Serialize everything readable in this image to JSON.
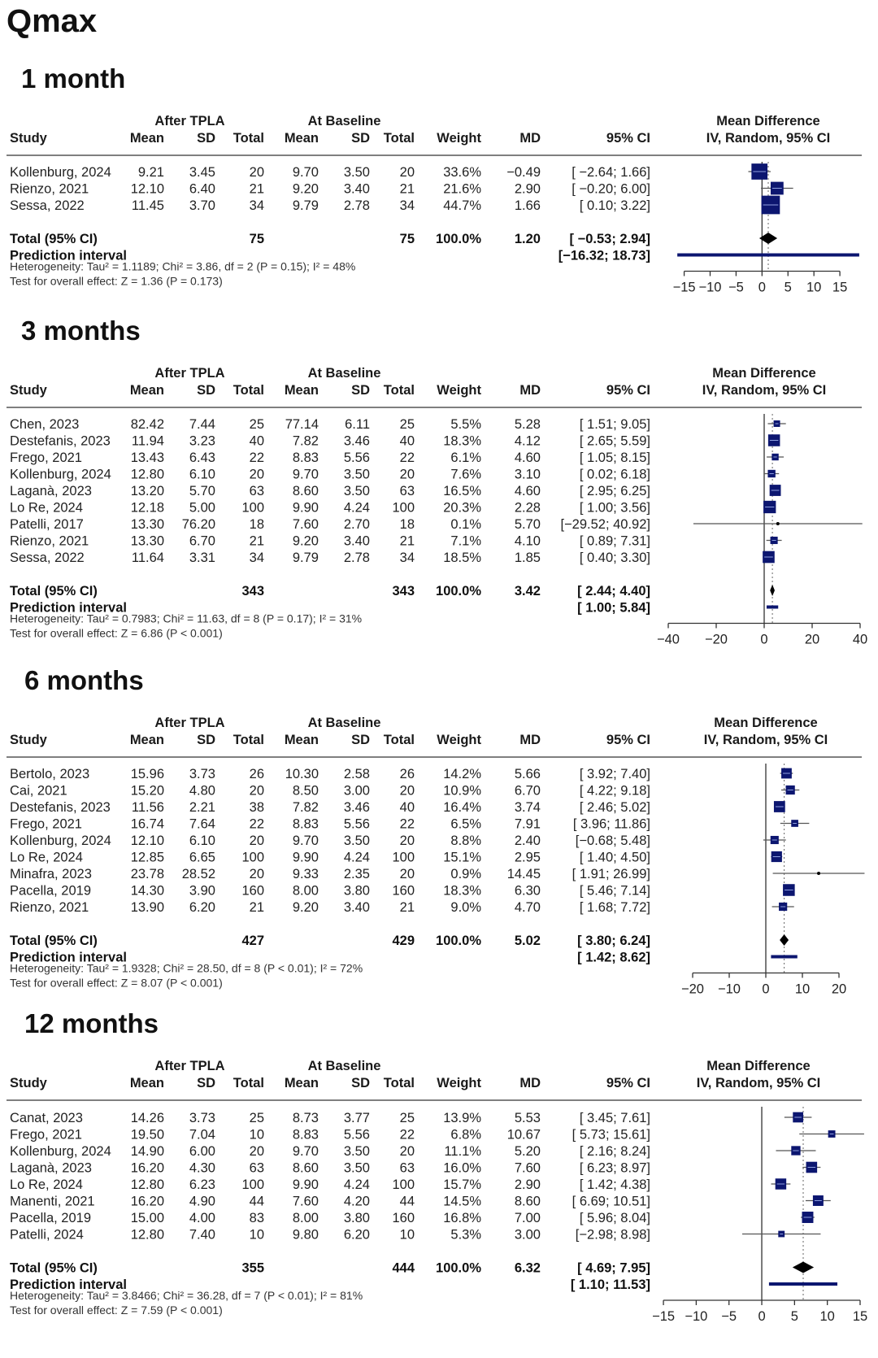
{
  "title": "Qmax",
  "headers": {
    "group1": "After TPLA",
    "group2": "At Baseline",
    "study": "Study",
    "mean": "Mean",
    "sd": "SD",
    "total": "Total",
    "weight": "Weight",
    "md": "MD",
    "ci": "95% CI",
    "effect1": "Mean Difference",
    "effect2": "IV, Random, 95% CI"
  },
  "colors": {
    "box": "#0c1670",
    "marker": "#000000",
    "pi": "#0c1670"
  },
  "chart_data": [
    {
      "type": "forest",
      "panel_title": "1 month",
      "xlim": [
        -16.5,
        18.9
      ],
      "xticks": [
        -15,
        -10,
        -5,
        0,
        5,
        10,
        15
      ],
      "studies": [
        {
          "study": "Kollenburg, 2024",
          "mean1": "9.21",
          "sd1": "3.45",
          "n1": "20",
          "mean2": "9.70",
          "sd2": "3.50",
          "n2": "20",
          "weight": "33.6%",
          "md": "−0.49",
          "ci": "[ −2.64;  1.66]",
          "md_v": -0.49,
          "lo": -2.64,
          "hi": 1.66,
          "w": 33.6
        },
        {
          "study": "Rienzo, 2021",
          "mean1": "12.10",
          "sd1": "6.40",
          "n1": "21",
          "mean2": "9.20",
          "sd2": "3.40",
          "n2": "21",
          "weight": "21.6%",
          "md": "2.90",
          "ci": "[ −0.20;  6.00]",
          "md_v": 2.9,
          "lo": -0.2,
          "hi": 6.0,
          "w": 21.6
        },
        {
          "study": "Sessa, 2022",
          "mean1": "11.45",
          "sd1": "3.70",
          "n1": "34",
          "mean2": "9.79",
          "sd2": "2.78",
          "n2": "34",
          "weight": "44.7%",
          "md": "1.66",
          "ci": "[  0.10;  3.22]",
          "md_v": 1.66,
          "lo": 0.1,
          "hi": 3.22,
          "w": 44.7
        }
      ],
      "total": {
        "label": "Total (95% CI)",
        "n1": "75",
        "n2": "75",
        "weight": "100.0%",
        "md": "1.20",
        "ci": "[ −0.53;  2.94]",
        "md_v": 1.2,
        "lo": -0.53,
        "hi": 2.94
      },
      "prediction": {
        "label": "Prediction interval",
        "ci": "[−16.32; 18.73]",
        "lo": -16.32,
        "hi": 18.73
      },
      "heterogeneity": "Heterogeneity: Tau² = 1.1189; Chi² = 3.86, df = 2 (P = 0.15); I² = 48%",
      "overall": "Test for overall effect: Z = 1.36 (P = 0.173)"
    },
    {
      "type": "forest",
      "panel_title": "3 months",
      "xlim": [
        -40,
        40
      ],
      "xticks": [
        -40,
        -20,
        0,
        20,
        40
      ],
      "studies": [
        {
          "study": "Chen, 2023",
          "mean1": "82.42",
          "sd1": "7.44",
          "n1": "25",
          "mean2": "77.14",
          "sd2": "6.11",
          "n2": "25",
          "weight": "5.5%",
          "md": "5.28",
          "ci": "[  1.51;  9.05]",
          "md_v": 5.28,
          "lo": 1.51,
          "hi": 9.05,
          "w": 5.5
        },
        {
          "study": "Destefanis, 2023",
          "mean1": "11.94",
          "sd1": "3.23",
          "n1": "40",
          "mean2": "7.82",
          "sd2": "3.46",
          "n2": "40",
          "weight": "18.3%",
          "md": "4.12",
          "ci": "[  2.65;  5.59]",
          "md_v": 4.12,
          "lo": 2.65,
          "hi": 5.59,
          "w": 18.3
        },
        {
          "study": "Frego, 2021",
          "mean1": "13.43",
          "sd1": "6.43",
          "n1": "22",
          "mean2": "8.83",
          "sd2": "5.56",
          "n2": "22",
          "weight": "6.1%",
          "md": "4.60",
          "ci": "[  1.05;  8.15]",
          "md_v": 4.6,
          "lo": 1.05,
          "hi": 8.15,
          "w": 6.1
        },
        {
          "study": "Kollenburg, 2024",
          "mean1": "12.80",
          "sd1": "6.10",
          "n1": "20",
          "mean2": "9.70",
          "sd2": "3.50",
          "n2": "20",
          "weight": "7.6%",
          "md": "3.10",
          "ci": "[  0.02;  6.18]",
          "md_v": 3.1,
          "lo": 0.02,
          "hi": 6.18,
          "w": 7.6
        },
        {
          "study": "Laganà, 2023",
          "mean1": "13.20",
          "sd1": "5.70",
          "n1": "63",
          "mean2": "8.60",
          "sd2": "3.50",
          "n2": "63",
          "weight": "16.5%",
          "md": "4.60",
          "ci": "[  2.95;  6.25]",
          "md_v": 4.6,
          "lo": 2.95,
          "hi": 6.25,
          "w": 16.5
        },
        {
          "study": "Lo Re, 2024",
          "mean1": "12.18",
          "sd1": "5.00",
          "n1": "100",
          "mean2": "9.90",
          "sd2": "4.24",
          "n2": "100",
          "weight": "20.3%",
          "md": "2.28",
          "ci": "[  1.00;  3.56]",
          "md_v": 2.28,
          "lo": 1.0,
          "hi": 3.56,
          "w": 20.3
        },
        {
          "study": "Patelli, 2017",
          "mean1": "13.30",
          "sd1": "76.20",
          "n1": "18",
          "mean2": "7.60",
          "sd2": "2.70",
          "n2": "18",
          "weight": "0.1%",
          "md": "5.70",
          "ci": "[−29.52; 40.92]",
          "md_v": 5.7,
          "lo": -29.52,
          "hi": 40.92,
          "w": 0.1
        },
        {
          "study": "Rienzo, 2021",
          "mean1": "13.30",
          "sd1": "6.70",
          "n1": "21",
          "mean2": "9.20",
          "sd2": "3.40",
          "n2": "21",
          "weight": "7.1%",
          "md": "4.10",
          "ci": "[  0.89;  7.31]",
          "md_v": 4.1,
          "lo": 0.89,
          "hi": 7.31,
          "w": 7.1
        },
        {
          "study": "Sessa, 2022",
          "mean1": "11.64",
          "sd1": "3.31",
          "n1": "34",
          "mean2": "9.79",
          "sd2": "2.78",
          "n2": "34",
          "weight": "18.5%",
          "md": "1.85",
          "ci": "[  0.40;  3.30]",
          "md_v": 1.85,
          "lo": 0.4,
          "hi": 3.3,
          "w": 18.5
        }
      ],
      "total": {
        "label": "Total (95% CI)",
        "n1": "343",
        "n2": "343",
        "weight": "100.0%",
        "md": "3.42",
        "ci": "[  2.44;  4.40]",
        "md_v": 3.42,
        "lo": 2.44,
        "hi": 4.4
      },
      "prediction": {
        "label": "Prediction interval",
        "ci": "[  1.00;  5.84]",
        "lo": 1.0,
        "hi": 5.84
      },
      "heterogeneity": "Heterogeneity: Tau² = 0.7983; Chi² = 11.63, df = 8 (P = 0.17); I² = 31%",
      "overall": "Test for overall effect: Z = 6.86 (P < 0.001)"
    },
    {
      "type": "forest",
      "panel_title": "6 months",
      "xlim": [
        -20,
        20
      ],
      "xticks": [
        -20,
        -10,
        0,
        10,
        20
      ],
      "studies": [
        {
          "study": "Bertolo, 2023",
          "mean1": "15.96",
          "sd1": "3.73",
          "n1": "26",
          "mean2": "10.30",
          "sd2": "2.58",
          "n2": "26",
          "weight": "14.2%",
          "md": "5.66",
          "ci": "[ 3.92;  7.40]",
          "md_v": 5.66,
          "lo": 3.92,
          "hi": 7.4,
          "w": 14.2
        },
        {
          "study": "Cai, 2021",
          "mean1": "15.20",
          "sd1": "4.80",
          "n1": "20",
          "mean2": "8.50",
          "sd2": "3.00",
          "n2": "20",
          "weight": "10.9%",
          "md": "6.70",
          "ci": "[ 4.22;  9.18]",
          "md_v": 6.7,
          "lo": 4.22,
          "hi": 9.18,
          "w": 10.9
        },
        {
          "study": "Destefanis, 2023",
          "mean1": "11.56",
          "sd1": "2.21",
          "n1": "38",
          "mean2": "7.82",
          "sd2": "3.46",
          "n2": "40",
          "weight": "16.4%",
          "md": "3.74",
          "ci": "[ 2.46;  5.02]",
          "md_v": 3.74,
          "lo": 2.46,
          "hi": 5.02,
          "w": 16.4
        },
        {
          "study": "Frego, 2021",
          "mean1": "16.74",
          "sd1": "7.64",
          "n1": "22",
          "mean2": "8.83",
          "sd2": "5.56",
          "n2": "22",
          "weight": "6.5%",
          "md": "7.91",
          "ci": "[ 3.96; 11.86]",
          "md_v": 7.91,
          "lo": 3.96,
          "hi": 11.86,
          "w": 6.5
        },
        {
          "study": "Kollenburg, 2024",
          "mean1": "12.10",
          "sd1": "6.10",
          "n1": "20",
          "mean2": "9.70",
          "sd2": "3.50",
          "n2": "20",
          "weight": "8.8%",
          "md": "2.40",
          "ci": "[−0.68;  5.48]",
          "md_v": 2.4,
          "lo": -0.68,
          "hi": 5.48,
          "w": 8.8
        },
        {
          "study": "Lo Re, 2024",
          "mean1": "12.85",
          "sd1": "6.65",
          "n1": "100",
          "mean2": "9.90",
          "sd2": "4.24",
          "n2": "100",
          "weight": "15.1%",
          "md": "2.95",
          "ci": "[ 1.40;  4.50]",
          "md_v": 2.95,
          "lo": 1.4,
          "hi": 4.5,
          "w": 15.1
        },
        {
          "study": "Minafra, 2023",
          "mean1": "23.78",
          "sd1": "28.52",
          "n1": "20",
          "mean2": "9.33",
          "sd2": "2.35",
          "n2": "20",
          "weight": "0.9%",
          "md": "14.45",
          "ci": "[ 1.91; 26.99]",
          "md_v": 14.45,
          "lo": 1.91,
          "hi": 26.99,
          "w": 0.9
        },
        {
          "study": "Pacella, 2019",
          "mean1": "14.30",
          "sd1": "3.90",
          "n1": "160",
          "mean2": "8.00",
          "sd2": "3.80",
          "n2": "160",
          "weight": "18.3%",
          "md": "6.30",
          "ci": "[ 5.46;  7.14]",
          "md_v": 6.3,
          "lo": 5.46,
          "hi": 7.14,
          "w": 18.3
        },
        {
          "study": "Rienzo, 2021",
          "mean1": "13.90",
          "sd1": "6.20",
          "n1": "21",
          "mean2": "9.20",
          "sd2": "3.40",
          "n2": "21",
          "weight": "9.0%",
          "md": "4.70",
          "ci": "[ 1.68;  7.72]",
          "md_v": 4.7,
          "lo": 1.68,
          "hi": 7.72,
          "w": 9.0
        }
      ],
      "total": {
        "label": "Total (95% CI)",
        "n1": "427",
        "n2": "429",
        "weight": "100.0%",
        "md": "5.02",
        "ci": "[ 3.80;  6.24]",
        "md_v": 5.02,
        "lo": 3.8,
        "hi": 6.24
      },
      "prediction": {
        "label": "Prediction interval",
        "ci": "[ 1.42;  8.62]",
        "lo": 1.42,
        "hi": 8.62
      },
      "heterogeneity": "Heterogeneity: Tau² = 1.9328; Chi² = 28.50, df = 8 (P < 0.01); I² = 72%",
      "overall": "Test for overall effect: Z = 8.07 (P < 0.001)"
    },
    {
      "type": "forest",
      "panel_title": "12 months",
      "xlim": [
        -16,
        15
      ],
      "xticks": [
        -15,
        -10,
        -5,
        0,
        5,
        10,
        15
      ],
      "studies": [
        {
          "study": "Canat, 2023",
          "mean1": "14.26",
          "sd1": "3.73",
          "n1": "25",
          "mean2": "8.73",
          "sd2": "3.77",
          "n2": "25",
          "weight": "13.9%",
          "md": "5.53",
          "ci": "[ 3.45;  7.61]",
          "md_v": 5.53,
          "lo": 3.45,
          "hi": 7.61,
          "w": 13.9
        },
        {
          "study": "Frego, 2021",
          "mean1": "19.50",
          "sd1": "7.04",
          "n1": "10",
          "mean2": "8.83",
          "sd2": "5.56",
          "n2": "22",
          "weight": "6.8%",
          "md": "10.67",
          "ci": "[ 5.73; 15.61]",
          "md_v": 10.67,
          "lo": 5.73,
          "hi": 15.61,
          "w": 6.8
        },
        {
          "study": "Kollenburg, 2024",
          "mean1": "14.90",
          "sd1": "6.00",
          "n1": "20",
          "mean2": "9.70",
          "sd2": "3.50",
          "n2": "20",
          "weight": "11.1%",
          "md": "5.20",
          "ci": "[ 2.16;  8.24]",
          "md_v": 5.2,
          "lo": 2.16,
          "hi": 8.24,
          "w": 11.1
        },
        {
          "study": "Laganà, 2023",
          "mean1": "16.20",
          "sd1": "4.30",
          "n1": "63",
          "mean2": "8.60",
          "sd2": "3.50",
          "n2": "63",
          "weight": "16.0%",
          "md": "7.60",
          "ci": "[ 6.23;  8.97]",
          "md_v": 7.6,
          "lo": 6.23,
          "hi": 8.97,
          "w": 16.0
        },
        {
          "study": "Lo Re, 2024",
          "mean1": "12.80",
          "sd1": "6.23",
          "n1": "100",
          "mean2": "9.90",
          "sd2": "4.24",
          "n2": "100",
          "weight": "15.7%",
          "md": "2.90",
          "ci": "[ 1.42;  4.38]",
          "md_v": 2.9,
          "lo": 1.42,
          "hi": 4.38,
          "w": 15.7
        },
        {
          "study": "Manenti, 2021",
          "mean1": "16.20",
          "sd1": "4.90",
          "n1": "44",
          "mean2": "7.60",
          "sd2": "4.20",
          "n2": "44",
          "weight": "14.5%",
          "md": "8.60",
          "ci": "[ 6.69; 10.51]",
          "md_v": 8.6,
          "lo": 6.69,
          "hi": 10.51,
          "w": 14.5
        },
        {
          "study": "Pacella, 2019",
          "mean1": "15.00",
          "sd1": "4.00",
          "n1": "83",
          "mean2": "8.00",
          "sd2": "3.80",
          "n2": "160",
          "weight": "16.8%",
          "md": "7.00",
          "ci": "[ 5.96;  8.04]",
          "md_v": 7.0,
          "lo": 5.96,
          "hi": 8.04,
          "w": 16.8
        },
        {
          "study": "Patelli, 2024",
          "mean1": "12.80",
          "sd1": "7.40",
          "n1": "10",
          "mean2": "9.80",
          "sd2": "6.20",
          "n2": "10",
          "weight": "5.3%",
          "md": "3.00",
          "ci": "[−2.98;  8.98]",
          "md_v": 3.0,
          "lo": -2.98,
          "hi": 8.98,
          "w": 5.3
        }
      ],
      "total": {
        "label": "Total (95% CI)",
        "n1": "355",
        "n2": "444",
        "weight": "100.0%",
        "md": "6.32",
        "ci": "[ 4.69;  7.95]",
        "md_v": 6.32,
        "lo": 4.69,
        "hi": 7.95
      },
      "prediction": {
        "label": "Prediction interval",
        "ci": "[ 1.10; 11.53]",
        "lo": 1.1,
        "hi": 11.53
      },
      "heterogeneity": "Heterogeneity: Tau² = 3.8466; Chi² = 36.28, df = 7 (P < 0.01); I² = 81%",
      "overall": "Test for overall effect: Z = 7.59 (P < 0.001)"
    }
  ]
}
